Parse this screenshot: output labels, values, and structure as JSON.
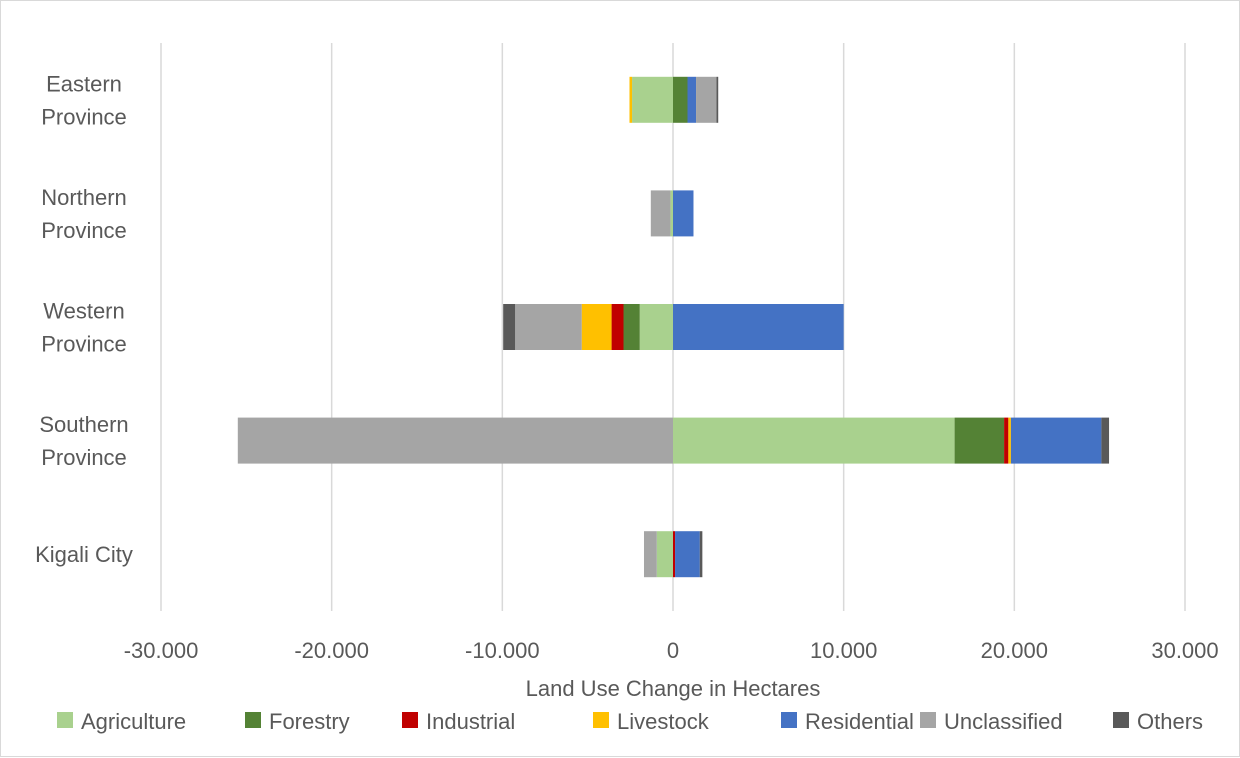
{
  "chart_data": {
    "type": "bar",
    "orientation": "horizontal",
    "stacked": true,
    "title": "",
    "xlabel": "Land Use Change in Hectares",
    "ylabel": "",
    "xlim": [
      -30000,
      30000
    ],
    "x_ticks": [
      -30000,
      -20000,
      -10000,
      0,
      10000,
      20000,
      30000
    ],
    "x_tick_labels": [
      "-30.000",
      "-20.000",
      "-10.000",
      "0",
      "10.000",
      "20.000",
      "30.000"
    ],
    "categories": [
      "Kigali City",
      "Southern Province",
      "Western Province",
      "Northern Province",
      "Eastern Province"
    ],
    "category_labels": [
      [
        "Kigali City"
      ],
      [
        "Southern",
        "Province"
      ],
      [
        "Western",
        "Province"
      ],
      [
        "Northern",
        "Province"
      ],
      [
        "Eastern",
        "Province"
      ]
    ],
    "series": [
      {
        "name": "Agriculture",
        "color": "#a9d18e",
        "values": [
          -950,
          16500,
          -1950,
          -150,
          -2400
        ]
      },
      {
        "name": "Forestry",
        "color": "#548235",
        "values": [
          0,
          2900,
          -950,
          0,
          850
        ]
      },
      {
        "name": "Industrial",
        "color": "#c00000",
        "values": [
          120,
          250,
          -700,
          0,
          0
        ]
      },
      {
        "name": "Livestock",
        "color": "#ffc000",
        "values": [
          0,
          150,
          -1750,
          0,
          -150
        ]
      },
      {
        "name": "Residential",
        "color": "#4472c4",
        "values": [
          1450,
          5300,
          10000,
          1200,
          500
        ]
      },
      {
        "name": "Unclassified",
        "color": "#a5a5a5",
        "values": [
          -750,
          -25500,
          -3900,
          -1150,
          1200
        ]
      },
      {
        "name": "Others",
        "color": "#595959",
        "values": [
          150,
          450,
          -700,
          0,
          100
        ]
      }
    ],
    "grid": true,
    "legend_position": "bottom"
  }
}
